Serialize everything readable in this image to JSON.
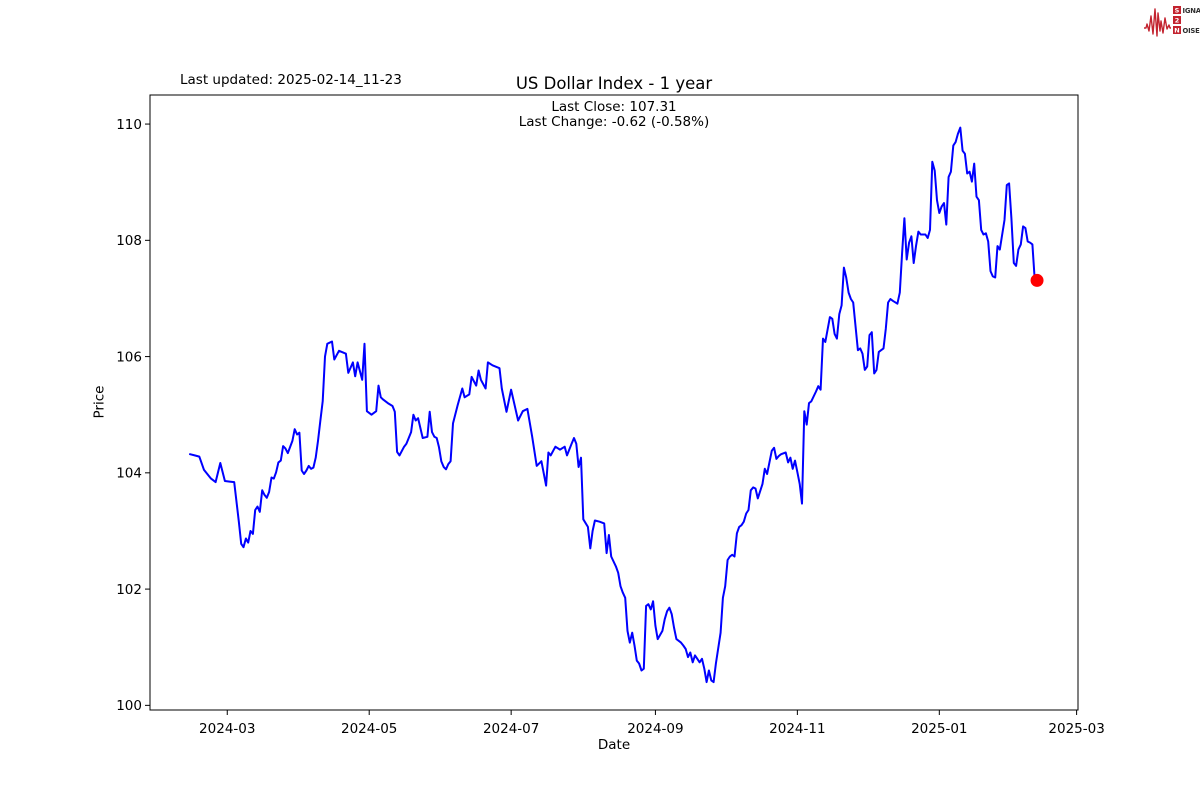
{
  "header": {
    "last_updated": "Last updated: 2025-02-14_11-23",
    "title": "US Dollar Index - 1 year",
    "last_close_line": "Last Close: 107.31",
    "last_change_line": "Last Change: -0.62 (-0.58%)"
  },
  "logo": {
    "row1_boxed": "S",
    "row1_rest": "IGNAL",
    "row2_boxed": "2",
    "row3_boxed": "N",
    "row3_rest": "OISE",
    "accent_color": "#c3232f"
  },
  "chart_data": {
    "type": "line",
    "title": "US Dollar Index - 1 year",
    "xlabel": "Date",
    "ylabel": "Price",
    "series_name": "US Dollar Index",
    "last_close": 107.31,
    "last_change": -0.62,
    "last_change_pct": "-0.58%",
    "start_date": "2024-02-14",
    "end_date": "2025-02-14",
    "x_tick_labels": [
      "2024-03",
      "2024-05",
      "2024-07",
      "2024-09",
      "2024-11",
      "2025-01",
      "2025-03"
    ],
    "x_tick_day_offsets": [
      16,
      77,
      138,
      200,
      261,
      322,
      381
    ],
    "xlim_day_offsets": [
      -17.2,
      381.6
    ],
    "y_tick_values": [
      100,
      102,
      104,
      106,
      108,
      110
    ],
    "ylim": [
      99.92,
      110.5
    ],
    "grid": false,
    "legend": "none",
    "line_color": "#0000ff",
    "marker_color": "#ff0000",
    "points": [
      [
        0,
        104.32
      ],
      [
        2,
        104.3
      ],
      [
        4,
        104.28
      ],
      [
        6,
        104.05
      ],
      [
        9,
        103.9
      ],
      [
        11,
        103.84
      ],
      [
        13,
        104.17
      ],
      [
        15,
        103.86
      ],
      [
        17,
        103.85
      ],
      [
        19,
        103.84
      ],
      [
        21,
        103.15
      ],
      [
        22,
        102.78
      ],
      [
        23,
        102.72
      ],
      [
        24,
        102.87
      ],
      [
        25,
        102.8
      ],
      [
        26,
        103.0
      ],
      [
        27,
        102.95
      ],
      [
        28,
        103.36
      ],
      [
        29,
        103.42
      ],
      [
        30,
        103.33
      ],
      [
        31,
        103.7
      ],
      [
        32,
        103.62
      ],
      [
        33,
        103.57
      ],
      [
        34,
        103.67
      ],
      [
        35,
        103.92
      ],
      [
        36,
        103.9
      ],
      [
        37,
        104.01
      ],
      [
        38,
        104.18
      ],
      [
        39,
        104.21
      ],
      [
        40,
        104.46
      ],
      [
        41,
        104.42
      ],
      [
        42,
        104.34
      ],
      [
        44,
        104.55
      ],
      [
        45,
        104.75
      ],
      [
        46,
        104.66
      ],
      [
        47,
        104.69
      ],
      [
        48,
        104.04
      ],
      [
        49,
        103.98
      ],
      [
        50,
        104.04
      ],
      [
        51,
        104.12
      ],
      [
        52,
        104.07
      ],
      [
        53,
        104.09
      ],
      [
        54,
        104.26
      ],
      [
        55,
        104.55
      ],
      [
        56,
        104.89
      ],
      [
        57,
        105.23
      ],
      [
        58,
        106.0
      ],
      [
        59,
        106.22
      ],
      [
        61,
        106.26
      ],
      [
        62,
        105.95
      ],
      [
        64,
        106.1
      ],
      [
        67,
        106.05
      ],
      [
        68,
        105.72
      ],
      [
        70,
        105.9
      ],
      [
        71,
        105.66
      ],
      [
        72,
        105.9
      ],
      [
        74,
        105.6
      ],
      [
        75,
        106.22
      ],
      [
        76,
        105.06
      ],
      [
        78,
        105.0
      ],
      [
        80,
        105.06
      ],
      [
        81,
        105.5
      ],
      [
        82,
        105.3
      ],
      [
        83,
        105.26
      ],
      [
        85,
        105.2
      ],
      [
        87,
        105.15
      ],
      [
        88,
        105.05
      ],
      [
        89,
        104.36
      ],
      [
        90,
        104.3
      ],
      [
        92,
        104.45
      ],
      [
        93,
        104.5
      ],
      [
        95,
        104.7
      ],
      [
        96,
        105.0
      ],
      [
        97,
        104.9
      ],
      [
        98,
        104.94
      ],
      [
        100,
        104.6
      ],
      [
        102,
        104.62
      ],
      [
        103,
        105.05
      ],
      [
        104,
        104.7
      ],
      [
        105,
        104.62
      ],
      [
        106,
        104.6
      ],
      [
        107,
        104.44
      ],
      [
        108,
        104.2
      ],
      [
        109,
        104.1
      ],
      [
        110,
        104.06
      ],
      [
        111,
        104.15
      ],
      [
        112,
        104.2
      ],
      [
        113,
        104.85
      ],
      [
        115,
        105.16
      ],
      [
        117,
        105.45
      ],
      [
        118,
        105.3
      ],
      [
        120,
        105.35
      ],
      [
        121,
        105.65
      ],
      [
        123,
        105.5
      ],
      [
        124,
        105.76
      ],
      [
        125,
        105.6
      ],
      [
        127,
        105.45
      ],
      [
        128,
        105.9
      ],
      [
        130,
        105.85
      ],
      [
        133,
        105.8
      ],
      [
        134,
        105.45
      ],
      [
        136,
        105.05
      ],
      [
        138,
        105.43
      ],
      [
        141,
        104.9
      ],
      [
        143,
        105.06
      ],
      [
        145,
        105.1
      ],
      [
        147,
        104.63
      ],
      [
        149,
        104.12
      ],
      [
        151,
        104.2
      ],
      [
        153,
        103.78
      ],
      [
        154,
        104.35
      ],
      [
        155,
        104.3
      ],
      [
        157,
        104.45
      ],
      [
        159,
        104.4
      ],
      [
        161,
        104.45
      ],
      [
        162,
        104.3
      ],
      [
        164,
        104.5
      ],
      [
        165,
        104.6
      ],
      [
        166,
        104.5
      ],
      [
        167,
        104.1
      ],
      [
        168,
        104.26
      ],
      [
        169,
        103.2
      ],
      [
        171,
        103.07
      ],
      [
        172,
        102.7
      ],
      [
        173,
        103.0
      ],
      [
        174,
        103.18
      ],
      [
        176,
        103.16
      ],
      [
        178,
        103.13
      ],
      [
        179,
        102.62
      ],
      [
        180,
        102.93
      ],
      [
        181,
        102.56
      ],
      [
        183,
        102.39
      ],
      [
        184,
        102.28
      ],
      [
        185,
        102.05
      ],
      [
        186,
        101.94
      ],
      [
        187,
        101.85
      ],
      [
        188,
        101.28
      ],
      [
        189,
        101.08
      ],
      [
        190,
        101.25
      ],
      [
        191,
        101.03
      ],
      [
        192,
        100.77
      ],
      [
        193,
        100.72
      ],
      [
        194,
        100.6
      ],
      [
        195,
        100.63
      ],
      [
        196,
        101.71
      ],
      [
        197,
        101.74
      ],
      [
        198,
        101.65
      ],
      [
        199,
        101.79
      ],
      [
        200,
        101.37
      ],
      [
        201,
        101.14
      ],
      [
        203,
        101.28
      ],
      [
        204,
        101.48
      ],
      [
        205,
        101.62
      ],
      [
        206,
        101.68
      ],
      [
        207,
        101.57
      ],
      [
        208,
        101.34
      ],
      [
        209,
        101.14
      ],
      [
        211,
        101.08
      ],
      [
        212,
        101.03
      ],
      [
        213,
        100.97
      ],
      [
        214,
        100.83
      ],
      [
        215,
        100.91
      ],
      [
        216,
        100.74
      ],
      [
        217,
        100.86
      ],
      [
        218,
        100.8
      ],
      [
        219,
        100.74
      ],
      [
        220,
        100.8
      ],
      [
        221,
        100.63
      ],
      [
        222,
        100.4
      ],
      [
        223,
        100.6
      ],
      [
        224,
        100.43
      ],
      [
        225,
        100.4
      ],
      [
        226,
        100.72
      ],
      [
        228,
        101.25
      ],
      [
        229,
        101.85
      ],
      [
        230,
        102.05
      ],
      [
        231,
        102.5
      ],
      [
        232,
        102.56
      ],
      [
        233,
        102.59
      ],
      [
        234,
        102.56
      ],
      [
        235,
        102.96
      ],
      [
        236,
        103.07
      ],
      [
        237,
        103.1
      ],
      [
        238,
        103.16
      ],
      [
        239,
        103.3
      ],
      [
        240,
        103.36
      ],
      [
        241,
        103.7
      ],
      [
        242,
        103.75
      ],
      [
        243,
        103.73
      ],
      [
        244,
        103.56
      ],
      [
        246,
        103.81
      ],
      [
        247,
        104.07
      ],
      [
        248,
        103.98
      ],
      [
        250,
        104.38
      ],
      [
        251,
        104.43
      ],
      [
        252,
        104.24
      ],
      [
        253,
        104.29
      ],
      [
        254,
        104.32
      ],
      [
        256,
        104.35
      ],
      [
        257,
        104.18
      ],
      [
        258,
        104.26
      ],
      [
        259,
        104.07
      ],
      [
        260,
        104.21
      ],
      [
        261,
        104.01
      ],
      [
        262,
        103.81
      ],
      [
        263,
        103.47
      ],
      [
        264,
        105.06
      ],
      [
        265,
        104.83
      ],
      [
        266,
        105.2
      ],
      [
        267,
        105.23
      ],
      [
        269,
        105.4
      ],
      [
        270,
        105.49
      ],
      [
        271,
        105.43
      ],
      [
        272,
        106.31
      ],
      [
        273,
        106.25
      ],
      [
        275,
        106.68
      ],
      [
        276,
        106.65
      ],
      [
        277,
        106.39
      ],
      [
        278,
        106.31
      ],
      [
        279,
        106.73
      ],
      [
        280,
        106.88
      ],
      [
        281,
        107.53
      ],
      [
        282,
        107.36
      ],
      [
        283,
        107.1
      ],
      [
        284,
        106.99
      ],
      [
        285,
        106.93
      ],
      [
        287,
        106.11
      ],
      [
        288,
        106.14
      ],
      [
        289,
        106.05
      ],
      [
        290,
        105.77
      ],
      [
        291,
        105.83
      ],
      [
        292,
        106.37
      ],
      [
        293,
        106.42
      ],
      [
        294,
        105.71
      ],
      [
        295,
        105.77
      ],
      [
        296,
        106.08
      ],
      [
        297,
        106.11
      ],
      [
        298,
        106.14
      ],
      [
        299,
        106.48
      ],
      [
        300,
        106.93
      ],
      [
        301,
        106.99
      ],
      [
        302,
        106.96
      ],
      [
        304,
        106.91
      ],
      [
        305,
        107.1
      ],
      [
        306,
        107.78
      ],
      [
        307,
        108.38
      ],
      [
        308,
        107.67
      ],
      [
        309,
        107.96
      ],
      [
        310,
        108.07
      ],
      [
        311,
        107.61
      ],
      [
        312,
        107.9
      ],
      [
        313,
        108.15
      ],
      [
        314,
        108.1
      ],
      [
        316,
        108.1
      ],
      [
        317,
        108.04
      ],
      [
        318,
        108.18
      ],
      [
        319,
        109.35
      ],
      [
        320,
        109.2
      ],
      [
        321,
        108.69
      ],
      [
        322,
        108.47
      ],
      [
        323,
        108.58
      ],
      [
        324,
        108.64
      ],
      [
        325,
        108.27
      ],
      [
        326,
        109.09
      ],
      [
        327,
        109.18
      ],
      [
        328,
        109.63
      ],
      [
        329,
        109.69
      ],
      [
        330,
        109.83
      ],
      [
        331,
        109.94
      ],
      [
        332,
        109.54
      ],
      [
        333,
        109.49
      ],
      [
        334,
        109.15
      ],
      [
        335,
        109.18
      ],
      [
        336,
        109.01
      ],
      [
        337,
        109.32
      ],
      [
        338,
        108.75
      ],
      [
        339,
        108.69
      ],
      [
        340,
        108.18
      ],
      [
        341,
        108.1
      ],
      [
        342,
        108.12
      ],
      [
        343,
        107.98
      ],
      [
        344,
        107.47
      ],
      [
        345,
        107.38
      ],
      [
        346,
        107.36
      ],
      [
        347,
        107.9
      ],
      [
        348,
        107.84
      ],
      [
        350,
        108.35
      ],
      [
        351,
        108.95
      ],
      [
        352,
        108.98
      ],
      [
        353,
        108.38
      ],
      [
        354,
        107.61
      ],
      [
        355,
        107.56
      ],
      [
        356,
        107.84
      ],
      [
        357,
        107.93
      ],
      [
        358,
        108.24
      ],
      [
        359,
        108.21
      ],
      [
        360,
        107.98
      ],
      [
        361,
        107.96
      ],
      [
        362,
        107.93
      ],
      [
        363,
        107.33
      ],
      [
        364,
        107.31
      ]
    ],
    "last_point": {
      "day_offset": 364,
      "value": 107.31
    }
  }
}
